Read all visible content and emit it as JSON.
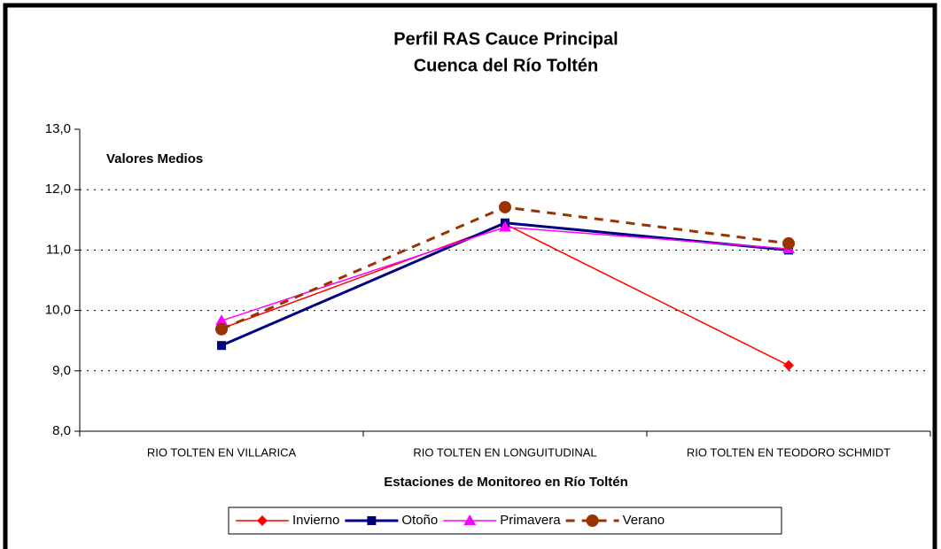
{
  "chart_data": {
    "type": "line",
    "title": [
      "Perfil RAS Cauce Principal",
      "Cuenca del Río Toltén"
    ],
    "annotation": "Valores Medios",
    "x_label": "Estaciones de Monitoreo en Río Toltén",
    "categories": [
      "RIO TOLTEN EN VILLARICA",
      "RIO TOLTEN EN LONGUITUDINAL",
      "RIO TOLTEN EN TEODORO SCHMIDT"
    ],
    "series": [
      {
        "name": "Invierno",
        "color": "#ff0000",
        "marker": "diamond",
        "line_style": "solid",
        "line_width": 1.5,
        "values": [
          9.7,
          11.43,
          9.09
        ]
      },
      {
        "name": "Otoño",
        "color": "#000080",
        "marker": "square",
        "line_style": "solid",
        "line_width": 3,
        "values": [
          9.42,
          11.45,
          11.0
        ]
      },
      {
        "name": "Primavera",
        "color": "#ff00ff",
        "marker": "triangle",
        "line_style": "solid",
        "line_width": 1.5,
        "values": [
          9.83,
          11.38,
          11.02
        ]
      },
      {
        "name": "Verano",
        "color": "#993300",
        "marker": "circle",
        "line_style": "dashed",
        "line_width": 3,
        "values": [
          9.69,
          11.71,
          11.11
        ]
      }
    ],
    "ylim": [
      8,
      13
    ],
    "yticks": [
      {
        "value": 8,
        "label": "8,0"
      },
      {
        "value": 9,
        "label": "9,0"
      },
      {
        "value": 10,
        "label": "10,0"
      },
      {
        "value": 11,
        "label": "11,0"
      },
      {
        "value": 12,
        "label": "12,0"
      },
      {
        "value": 13,
        "label": "13,0"
      }
    ],
    "grid": true,
    "legend": "bottom"
  }
}
